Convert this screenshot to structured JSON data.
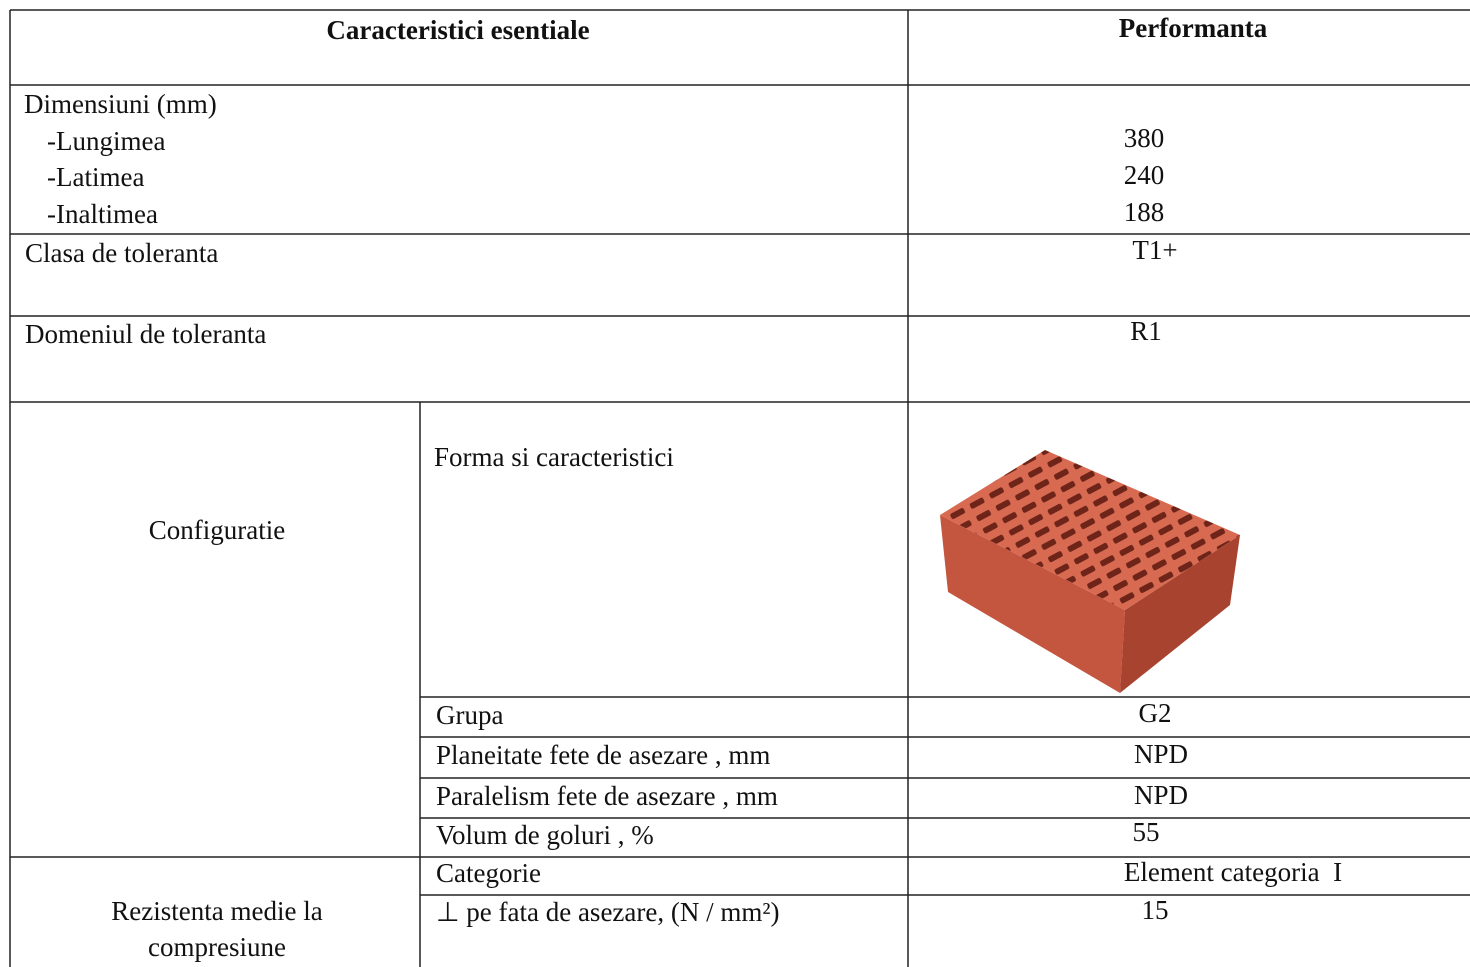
{
  "header": {
    "left": "Caracteristici esentiale",
    "right": "Performanta"
  },
  "dimensions": {
    "label": "Dimensiuni (mm)",
    "items": [
      {
        "label": "-Lungimea",
        "value": "380"
      },
      {
        "label": "-Latimea",
        "value": "240"
      },
      {
        "label": "-Inaltimea",
        "value": "188"
      }
    ]
  },
  "tolerance_class": {
    "label": "Clasa de toleranta",
    "value": "T1+"
  },
  "tolerance_range": {
    "label": "Domeniul de toleranta",
    "value": "R1"
  },
  "configuration": {
    "label": "Configuratie",
    "rows": [
      {
        "label": "Forma si caracteristici"
      },
      {
        "label": "Grupa",
        "value": "G2"
      },
      {
        "label": "Planeitate fete de asezare , mm",
        "value": "NPD"
      },
      {
        "label": "Paralelism fete de asezare , mm",
        "value": "NPD"
      },
      {
        "label": "Volum de goluri , %",
        "value": "55"
      }
    ]
  },
  "compressive_strength": {
    "label_lines": [
      "Rezistenta medie la",
      "compresiune"
    ],
    "rows": [
      {
        "label": "Categorie",
        "value": "Element categoria  I"
      },
      {
        "label": "⊥ pe fata de asezare, (N / mm²)",
        "value": "15"
      }
    ]
  }
}
